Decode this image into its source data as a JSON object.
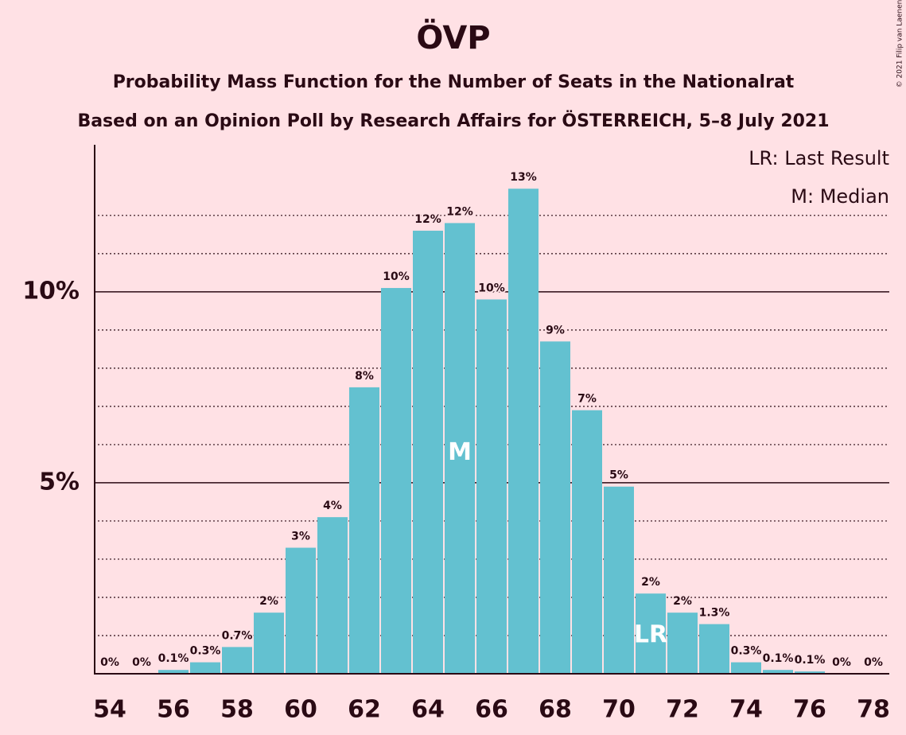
{
  "chart_data": {
    "type": "bar",
    "title": "ÖVP",
    "subtitle": "Probability Mass Function for the Number of Seats in the Nationalrat",
    "subtitle2": "Based on an Opinion Poll by Research Affairs for ÖSTERREICH, 5–8 July 2021",
    "copyright": "© 2021 Filip van Laenen",
    "legend": [
      "LR: Last Result",
      "M: Median"
    ],
    "x": [
      54,
      55,
      56,
      57,
      58,
      59,
      60,
      61,
      62,
      63,
      64,
      65,
      66,
      67,
      68,
      69,
      70,
      71,
      72,
      73,
      74,
      75,
      76,
      77,
      78
    ],
    "values": [
      0,
      0,
      0.1,
      0.3,
      0.7,
      1.6,
      3.3,
      4.1,
      7.5,
      10.1,
      11.6,
      11.8,
      9.8,
      12.7,
      8.7,
      6.9,
      4.9,
      2.1,
      1.6,
      1.3,
      0.3,
      0.1,
      0.06,
      0,
      0
    ],
    "value_labels": [
      "0%",
      "0%",
      "0.1%",
      "0.3%",
      "0.7%",
      "2%",
      "3%",
      "4%",
      "8%",
      "10%",
      "12%",
      "12%",
      "10%",
      "13%",
      "9%",
      "7%",
      "5%",
      "2%",
      "2%",
      "1.3%",
      "0.3%",
      "0.1%",
      "0.1%",
      "0%",
      "0%"
    ],
    "color": "#63c1d0",
    "xlim": [
      53.5,
      78.5
    ],
    "xticks": [
      54,
      56,
      58,
      60,
      62,
      64,
      66,
      68,
      70,
      72,
      74,
      76,
      78
    ],
    "ylim": [
      0,
      13.85
    ],
    "yticks": [
      {
        "value": 5,
        "label": "5%"
      },
      {
        "value": 10,
        "label": "10%"
      }
    ],
    "minor_yticks": [
      1,
      2,
      3,
      4,
      6,
      7,
      8,
      9,
      11,
      12
    ],
    "annotations": [
      {
        "x": 65,
        "text": "M"
      },
      {
        "x": 71,
        "text": "LR"
      }
    ]
  }
}
